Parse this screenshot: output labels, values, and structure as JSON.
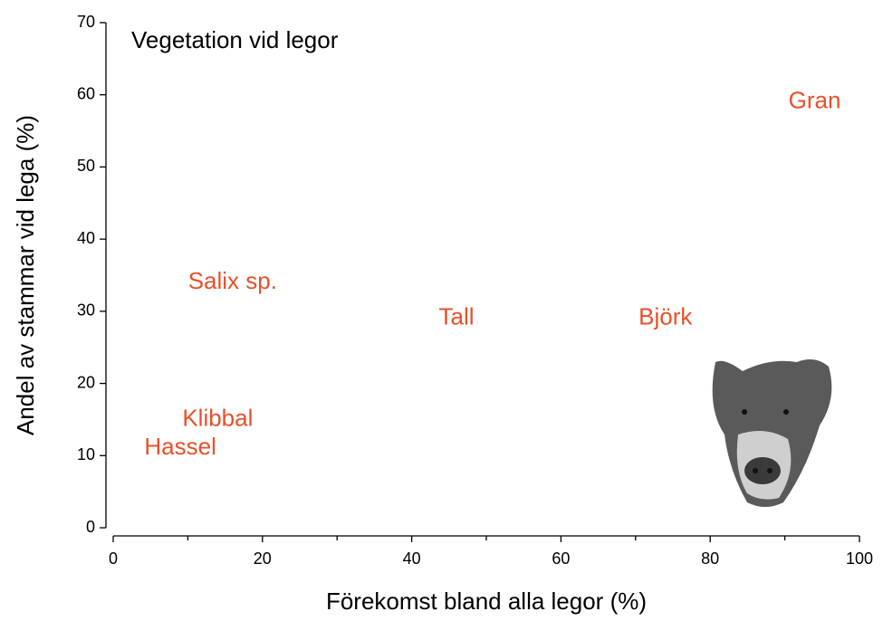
{
  "chart_data": {
    "type": "scatter",
    "title": "Vegetation vid legor",
    "x_label": "Förekomst bland alla legor (%)",
    "y_label": "Andel av stammar vid lega (%)",
    "color": "#e8502a",
    "labels": [
      "Gran",
      "Salix sp.",
      "Tall",
      "Björk",
      "Klibbal",
      "Hassel"
    ],
    "x": [
      94,
      16,
      46,
      74,
      14,
      9
    ],
    "values": [
      59,
      34,
      29,
      29,
      15,
      11
    ],
    "xlim": [
      0,
      100
    ],
    "ylim": [
      0,
      70
    ],
    "xticks": [
      0,
      20,
      40,
      60,
      80,
      100
    ],
    "xminorticks": [
      10,
      30,
      50,
      70,
      90
    ],
    "yticks": [
      0,
      10,
      20,
      30,
      40,
      50,
      60,
      70
    ]
  }
}
